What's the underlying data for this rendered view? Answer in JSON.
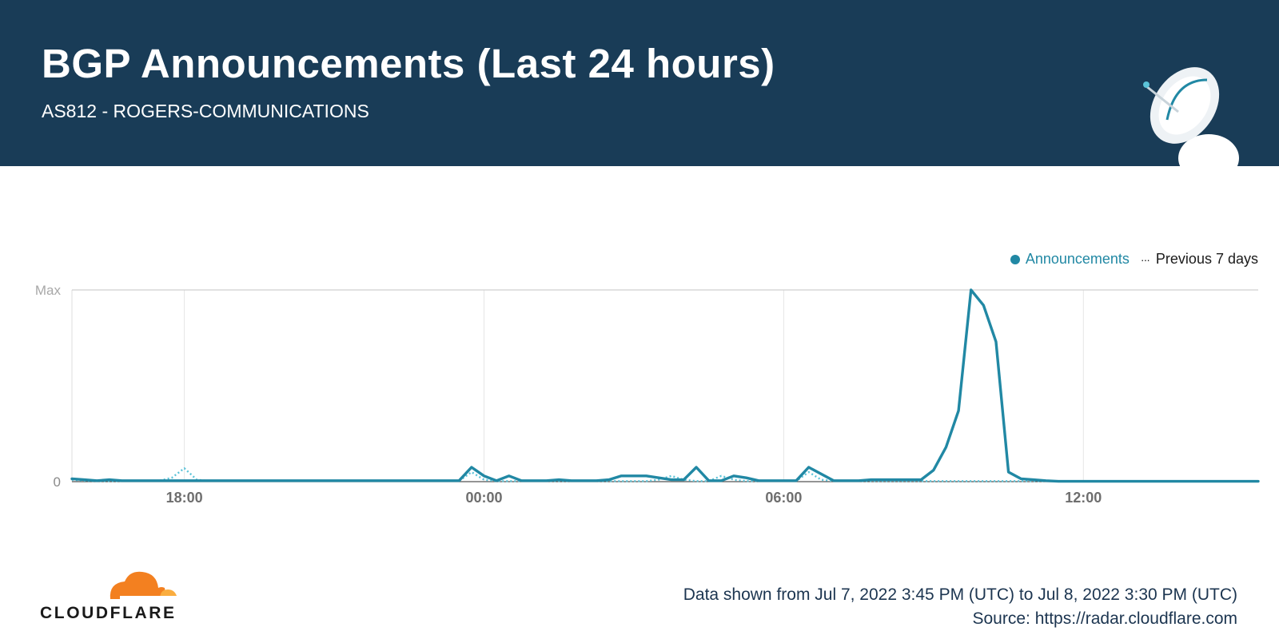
{
  "header": {
    "title": "BGP Announcements (Last 24 hours)",
    "subtitle": "AS812 - ROGERS-COMMUNICATIONS"
  },
  "footer": {
    "range": "Data shown from Jul 7, 2022 3:45 PM (UTC) to Jul 8, 2022 3:30 PM (UTC)",
    "source": "Source: https://radar.cloudflare.com"
  },
  "logo": {
    "text": "CLOUDFLARE",
    "icon": "cloudflare-cloud-icon"
  },
  "colors": {
    "header_bg": "#193c57",
    "series": "#2188a4",
    "previous": "#5bc3d8",
    "grid": "#e6e6e6",
    "axis_text": "#8a8a8a",
    "logo_orange": "#f38020"
  },
  "chart_data": {
    "type": "line",
    "ylabel": "",
    "xlabel": "",
    "y_tick_labels": [
      "0",
      "Max"
    ],
    "ylim": [
      0,
      1
    ],
    "x_start": "2022-07-07T15:45Z",
    "x_step_minutes": 15,
    "x_ticks": [
      {
        "label": "18:00",
        "time": "2022-07-07T18:00Z"
      },
      {
        "label": "00:00",
        "time": "2022-07-08T00:00Z"
      },
      {
        "label": "06:00",
        "time": "2022-07-08T06:00Z"
      },
      {
        "label": "12:00",
        "time": "2022-07-08T12:00Z"
      }
    ],
    "legend_position": "top-right",
    "grid": true,
    "series": [
      {
        "name": "Announcements",
        "style": "solid",
        "values": [
          0.015,
          0.01,
          0.005,
          0.01,
          0.005,
          0.005,
          0.005,
          0.005,
          0.005,
          0.005,
          0.005,
          0.005,
          0.005,
          0.005,
          0.005,
          0.005,
          0.005,
          0.005,
          0.005,
          0.005,
          0.005,
          0.005,
          0.005,
          0.005,
          0.005,
          0.005,
          0.005,
          0.005,
          0.005,
          0.005,
          0.005,
          0.005,
          0.075,
          0.03,
          0.005,
          0.03,
          0.005,
          0.005,
          0.005,
          0.01,
          0.005,
          0.005,
          0.005,
          0.01,
          0.03,
          0.03,
          0.03,
          0.02,
          0.01,
          0.01,
          0.075,
          0.005,
          0.005,
          0.03,
          0.02,
          0.005,
          0.005,
          0.005,
          0.005,
          0.075,
          0.04,
          0.005,
          0.005,
          0.005,
          0.01,
          0.01,
          0.01,
          0.01,
          0.01,
          0.06,
          0.18,
          0.37,
          1.0,
          0.92,
          0.73,
          0.05,
          0.015,
          0.01,
          0.005,
          0.002,
          0.002,
          0.002,
          0.002,
          0.002,
          0.002,
          0.002,
          0.002,
          0.002,
          0.002,
          0.002,
          0.002,
          0.002,
          0.002,
          0.002,
          0.002,
          0.002
        ]
      },
      {
        "name": "Previous 7 days",
        "style": "dotted",
        "values": [
          0.01,
          0.005,
          0.003,
          0.003,
          0.003,
          0.003,
          0.003,
          0.005,
          0.02,
          0.07,
          0.01,
          0.003,
          0.003,
          0.003,
          0.003,
          0.003,
          0.003,
          0.003,
          0.003,
          0.003,
          0.003,
          0.003,
          0.003,
          0.003,
          0.003,
          0.003,
          0.003,
          0.003,
          0.003,
          0.003,
          0.003,
          0.003,
          0.05,
          0.01,
          0.003,
          0.003,
          0.003,
          0.003,
          0.003,
          0.003,
          0.003,
          0.003,
          0.003,
          0.003,
          0.003,
          0.003,
          0.003,
          0.01,
          0.03,
          0.01,
          0.003,
          0.003,
          0.03,
          0.01,
          0.003,
          0.003,
          0.003,
          0.003,
          0.003,
          0.05,
          0.01,
          0.003,
          0.003,
          0.003,
          0.003,
          0.003,
          0.003,
          0.003,
          0.003,
          0.003,
          0.003,
          0.003,
          0.003,
          0.003,
          0.003,
          0.003,
          0.003,
          0.003,
          0.003,
          0.003,
          0.003,
          0.003,
          0.003,
          0.003,
          0.003,
          0.003,
          0.003,
          0.003,
          0.003,
          0.003,
          0.003,
          0.003,
          0.003,
          0.003,
          0.003,
          0.003
        ]
      }
    ]
  }
}
